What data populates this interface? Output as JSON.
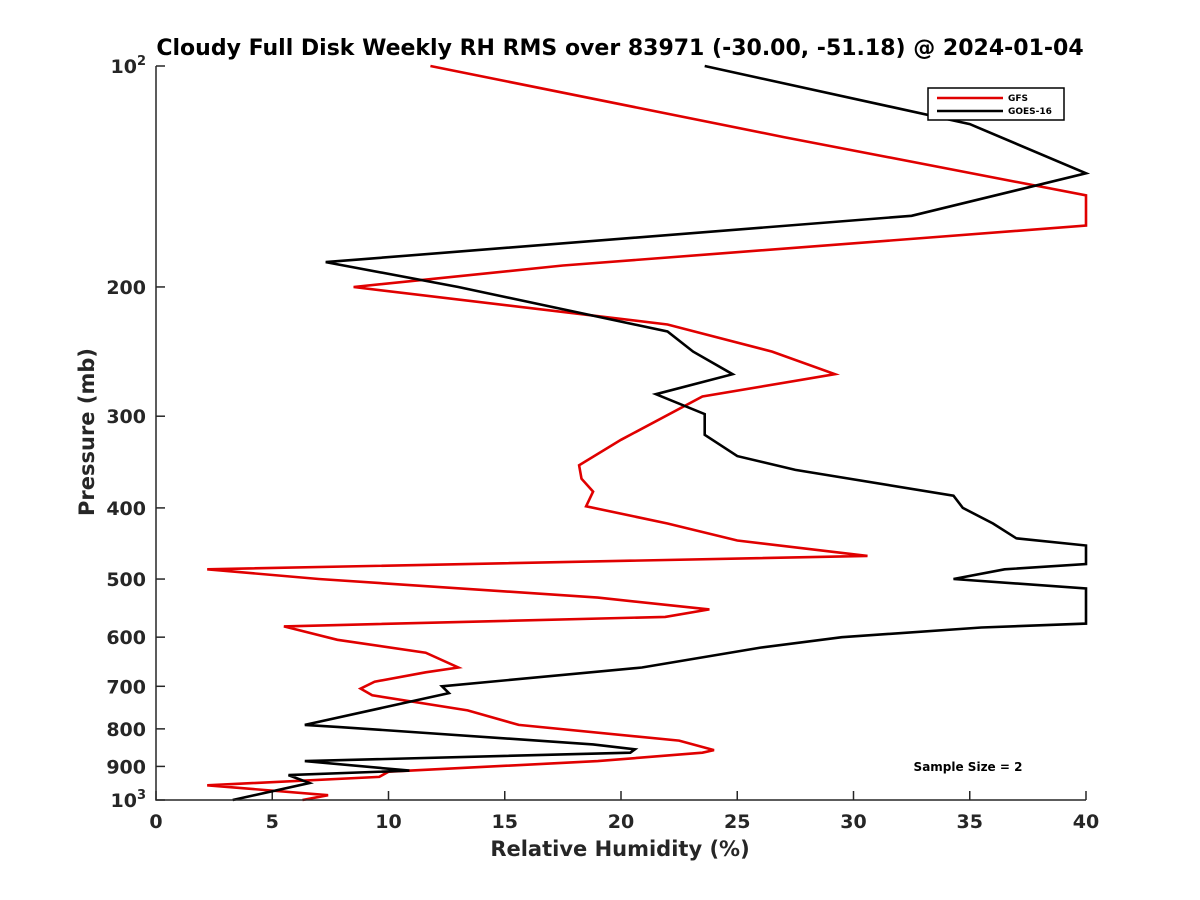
{
  "chart_data": {
    "type": "line",
    "title": "Cloudy Full Disk Weekly RH RMS over 83971 (-30.00, -51.18) @ 2024-01-04",
    "xlabel": "Relative Humidity (%)",
    "ylabel": "Pressure (mb)",
    "xlim": [
      0,
      40
    ],
    "ylim": [
      100,
      1000
    ],
    "yscale": "log",
    "y_reversed": true,
    "x_ticks": [
      0,
      5,
      10,
      15,
      20,
      25,
      30,
      35,
      40
    ],
    "y_ticks": [
      {
        "value": 100,
        "label": "10",
        "sup": "2"
      },
      {
        "value": 200,
        "label": "200"
      },
      {
        "value": 300,
        "label": "300"
      },
      {
        "value": 400,
        "label": "400"
      },
      {
        "value": 500,
        "label": "500"
      },
      {
        "value": 600,
        "label": "600"
      },
      {
        "value": 700,
        "label": "700"
      },
      {
        "value": 800,
        "label": "800"
      },
      {
        "value": 900,
        "label": "900"
      },
      {
        "value": 1000,
        "label": "10",
        "sup": "3"
      }
    ],
    "legend_position": "top-right",
    "annotation": "Sample Size = 2",
    "series": [
      {
        "name": "GFS",
        "color": "#e00000",
        "points": [
          [
            11.8,
            100
          ],
          [
            27,
            125
          ],
          [
            40,
            150
          ],
          [
            40,
            165
          ],
          [
            17.5,
            187
          ],
          [
            8.5,
            200
          ],
          [
            22,
            225
          ],
          [
            26.5,
            245
          ],
          [
            29.2,
            263
          ],
          [
            23.5,
            282
          ],
          [
            20,
            323
          ],
          [
            18.2,
            350
          ],
          [
            18.3,
            365
          ],
          [
            18.8,
            380
          ],
          [
            18.5,
            398
          ],
          [
            22,
            420
          ],
          [
            25,
            443
          ],
          [
            30.6,
            465
          ],
          [
            2.2,
            485
          ],
          [
            7,
            500
          ],
          [
            19,
            530
          ],
          [
            23.8,
            550
          ],
          [
            21.9,
            563
          ],
          [
            5.5,
            580
          ],
          [
            7.8,
            605
          ],
          [
            11.6,
            630
          ],
          [
            13,
            660
          ],
          [
            11.6,
            670
          ],
          [
            9.4,
            690
          ],
          [
            8.8,
            705
          ],
          [
            9.3,
            720
          ],
          [
            13.4,
            755
          ],
          [
            15.6,
            790
          ],
          [
            22.5,
            830
          ],
          [
            24,
            855
          ],
          [
            23.5,
            862
          ],
          [
            19,
            885
          ],
          [
            10,
            915
          ],
          [
            9.6,
            930
          ],
          [
            2.2,
            955
          ],
          [
            7.4,
            985
          ],
          [
            6.3,
            1000
          ]
        ]
      },
      {
        "name": "GOES-16",
        "color": "#000000",
        "points": [
          [
            23.6,
            100
          ],
          [
            35,
            120
          ],
          [
            40,
            140
          ],
          [
            32.5,
            160
          ],
          [
            7.3,
            185
          ],
          [
            13,
            200
          ],
          [
            22,
            230
          ],
          [
            23.1,
            245
          ],
          [
            24.8,
            263
          ],
          [
            21.5,
            280
          ],
          [
            23.6,
            298
          ],
          [
            23.6,
            318
          ],
          [
            25,
            340
          ],
          [
            27.5,
            355
          ],
          [
            34.3,
            385
          ],
          [
            34.7,
            400
          ],
          [
            36,
            420
          ],
          [
            37,
            440
          ],
          [
            40,
            450
          ],
          [
            40,
            477
          ],
          [
            36.5,
            485
          ],
          [
            34.3,
            500
          ],
          [
            40,
            515
          ],
          [
            40,
            575
          ],
          [
            35.5,
            582
          ],
          [
            29.5,
            600
          ],
          [
            26,
            620
          ],
          [
            20.9,
            660
          ],
          [
            12.3,
            700
          ],
          [
            12.6,
            715
          ],
          [
            6.4,
            790
          ],
          [
            7.8,
            795
          ],
          [
            18.8,
            840
          ],
          [
            20.6,
            853
          ],
          [
            20.4,
            862
          ],
          [
            6.4,
            885
          ],
          [
            10.9,
            912
          ],
          [
            5.7,
            925
          ],
          [
            6.6,
            948
          ],
          [
            3.3,
            1000
          ]
        ]
      }
    ]
  }
}
